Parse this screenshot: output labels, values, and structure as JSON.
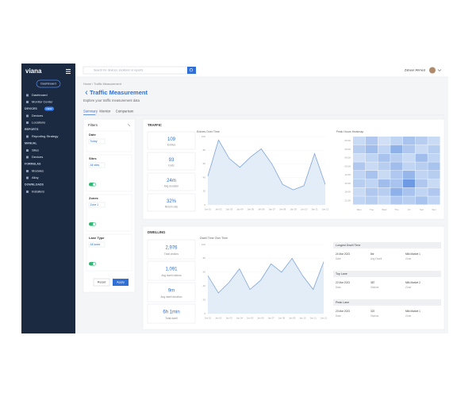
{
  "sidebar": {
    "logo": "viana",
    "button": "Dashboard",
    "groups": [
      {
        "items": [
          "Dashboard",
          "Monitor Center"
        ]
      },
      {
        "title": "DEVICES",
        "badge": "NEW",
        "items": [
          "Devices",
          "Locations"
        ]
      },
      {
        "title": "REPORTS",
        "items": [
          "Reporting Strategy"
        ]
      },
      {
        "title": "MANUAL",
        "items": [
          "Sites",
          "Devices"
        ]
      },
      {
        "title": "FORMULAS",
        "items": [
          "Modules",
          "Alloy"
        ]
      },
      {
        "title": "DOWNLOADS",
        "items": [
          "Installers"
        ]
      }
    ]
  },
  "topbar": {
    "search": "Search for devices, locations or reports",
    "user": "Zaheer Ahmed"
  },
  "header": {
    "breadcrumb": "Home / Traffic Measurement",
    "title": "Traffic Measurement",
    "subtitle": "Explore your traffic measurement data",
    "tabs": [
      "Summary",
      "Monitor",
      "Comparison"
    ]
  },
  "filters": {
    "title": "Filters",
    "fields": [
      {
        "label": "Date",
        "value": "Today"
      },
      {
        "label": "Sites",
        "value": "All sites",
        "toggle": true
      },
      {
        "label": "Zones",
        "value": "Zone 1",
        "toggle": true
      },
      {
        "label": "Lane Type",
        "value": "All lanes",
        "toggle": true
      }
    ],
    "buttons": [
      "Reset",
      "Apply"
    ]
  },
  "traffic": {
    "title": "TRAFFIC",
    "stats": [
      {
        "value": "109",
        "label": "Entries"
      },
      {
        "value": "93",
        "label": "Exits"
      },
      {
        "value": "24m",
        "label": "Avg duration"
      },
      {
        "value": "32%",
        "label": "Return rate"
      }
    ],
    "chart": {
      "type": "line",
      "title": "Entries Over Time",
      "x": [
        "Jan 01",
        "Jan 02",
        "Jan 03",
        "Jan 04",
        "Jan 05",
        "Jan 06",
        "Jan 07",
        "Jan 08",
        "Jan 09",
        "Jan 10",
        "Jan 11",
        "Jan 12"
      ],
      "values": [
        42,
        95,
        68,
        55,
        70,
        82,
        60,
        30,
        22,
        28,
        75,
        30
      ],
      "ylim": [
        0,
        100
      ],
      "yticks": [
        0,
        20,
        40,
        60,
        80,
        100
      ],
      "color": "#7ea4d8"
    },
    "heatmap": {
      "title": "Peak Hours Heatmap",
      "rows": [
        "00:00",
        "03:00",
        "06:00",
        "09:00",
        "12:00",
        "15:00",
        "18:00",
        "21:00"
      ],
      "cols": [
        "Mon",
        "Tue",
        "Wed",
        "Thu",
        "Fri",
        "Sat",
        "Sun"
      ],
      "values": [
        [
          20,
          35,
          15,
          25,
          40,
          30,
          20
        ],
        [
          30,
          45,
          25,
          55,
          35,
          20,
          30
        ],
        [
          15,
          25,
          40,
          30,
          20,
          45,
          25
        ],
        [
          35,
          20,
          30,
          45,
          25,
          30,
          40
        ],
        [
          25,
          40,
          20,
          35,
          50,
          25,
          30
        ],
        [
          30,
          25,
          45,
          40,
          75,
          35,
          20
        ],
        [
          20,
          35,
          30,
          55,
          40,
          25,
          35
        ],
        [
          25,
          30,
          20,
          35,
          30,
          40,
          25
        ]
      ]
    }
  },
  "dwelling": {
    "title": "DWELLING",
    "stats": [
      {
        "value": "2,976",
        "label": "Total visitors"
      },
      {
        "value": "1,091",
        "label": "Avg dwell visitors"
      },
      {
        "value": "9m",
        "label": "Avg dwell duration"
      },
      {
        "value": "6h 1min",
        "label": "Total dwell"
      }
    ],
    "chart": {
      "type": "line",
      "title": "Dwell Time Over Time",
      "x": [
        "Jan 01",
        "Jan 02",
        "Jan 03",
        "Jan 04",
        "Jan 05",
        "Jan 06",
        "Jan 07",
        "Jan 08",
        "Jan 09",
        "Jan 10",
        "Jan 11",
        "Jan 12"
      ],
      "values": [
        55,
        30,
        45,
        65,
        35,
        48,
        72,
        60,
        80,
        55,
        35,
        75
      ],
      "ylim": [
        0,
        100
      ],
      "yticks": [
        0,
        20,
        40,
        60,
        80,
        100
      ],
      "color": "#7ea4d8"
    },
    "table": {
      "sections": [
        {
          "title": "Longest Dwell Time",
          "rows": [
            [
              "24 Mar 2023",
              "8hr",
              "Milk Market 1"
            ],
            [
              "Date",
              "Avg Dwell",
              "Zone"
            ]
          ]
        },
        {
          "title": "Top Lane",
          "rows": [
            [
              "22 Mar 2023",
              "387",
              "Milk Market 2"
            ],
            [
              "Date",
              "Visitors",
              "Zone"
            ]
          ]
        },
        {
          "title": "Peak Lane",
          "rows": [
            [
              "23 Mar 2023",
              "322",
              "Milk Market 1"
            ],
            [
              "Date",
              "Visitors",
              "Zone"
            ]
          ]
        }
      ]
    }
  }
}
